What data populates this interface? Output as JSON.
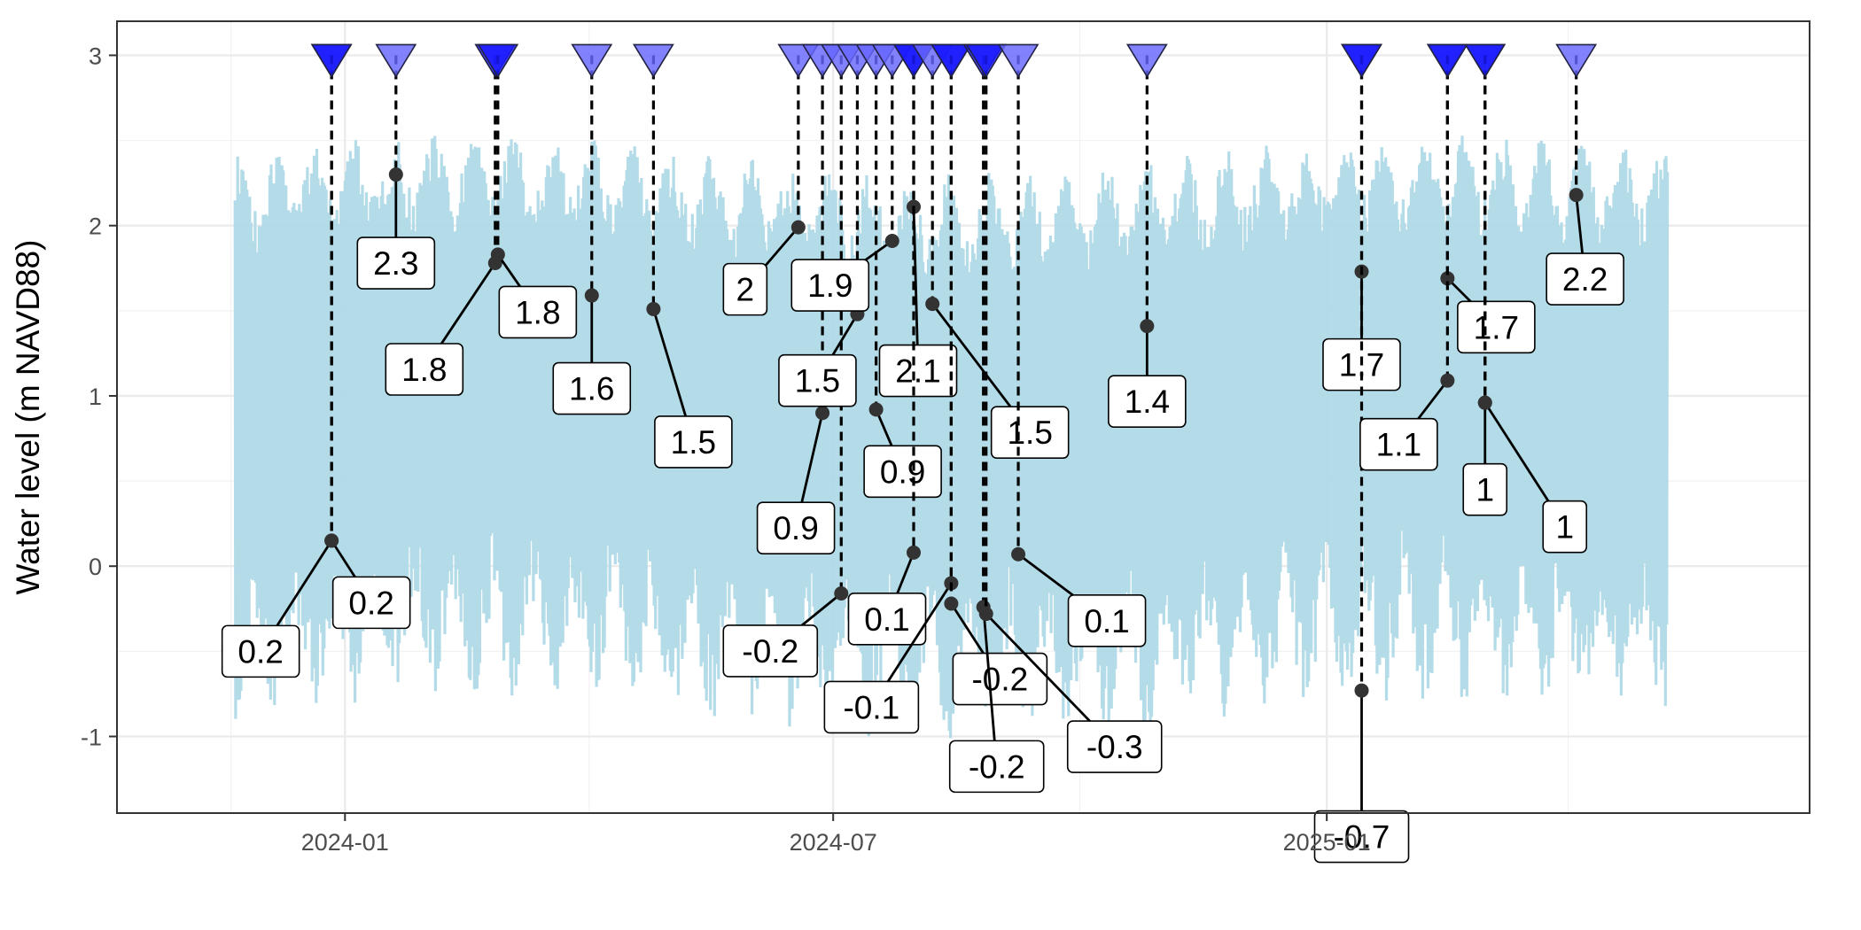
{
  "chart_data": {
    "type": "line",
    "title": "",
    "xlabel": "",
    "ylabel": "Water level (m NAVD88)",
    "xlim": [
      "2023-10-08",
      "2025-06-30"
    ],
    "ylim": [
      -1.45,
      3.2
    ],
    "x_ticks": [
      "2024-01-01",
      "2024-07-01",
      "2025-01-01"
    ],
    "x_tick_labels": [
      "2024-01",
      "2024-07",
      "2025-01"
    ],
    "y_ticks": [
      -1,
      0,
      1,
      2,
      3
    ],
    "y_tick_labels": [
      "-1",
      "0",
      "1",
      "2",
      "3"
    ],
    "grid": true,
    "legend": "none",
    "water_level_series": {
      "color": "#add8e6",
      "start": "2023-11-21",
      "end": "2025-05-08",
      "envelope_note": "semi-diurnal tide, high ~2.0-2.7 m, low ~-0.3 to -1.2 m"
    },
    "event_marker_level": 3.0,
    "marker_colors": {
      "dark": "#1a1aff",
      "light": "#6666ff"
    },
    "events": [
      {
        "date": "2023-12-27",
        "level": 0.15,
        "label": "0.2",
        "shade": "dark"
      },
      {
        "date": "2023-12-27",
        "level": 0.15,
        "label": "0.2",
        "shade": "dark"
      },
      {
        "date": "2024-01-20",
        "level": 2.3,
        "label": "2.3",
        "shade": "light"
      },
      {
        "date": "2024-02-26",
        "level": 1.78,
        "label": "1.8",
        "shade": "dark"
      },
      {
        "date": "2024-02-27",
        "level": 1.83,
        "label": "1.8",
        "shade": "dark"
      },
      {
        "date": "2024-04-02",
        "level": 1.59,
        "label": "1.6",
        "shade": "light"
      },
      {
        "date": "2024-04-25",
        "level": 1.51,
        "label": "1.5",
        "shade": "light"
      },
      {
        "date": "2024-06-18",
        "level": 1.99,
        "label": "2",
        "shade": "light"
      },
      {
        "date": "2024-06-27",
        "level": 0.9,
        "label": "0.9",
        "shade": "light"
      },
      {
        "date": "2024-07-04",
        "level": -0.16,
        "label": "-0.2",
        "shade": "light"
      },
      {
        "date": "2024-07-10",
        "level": 1.48,
        "label": "1.5",
        "shade": "light"
      },
      {
        "date": "2024-07-17",
        "level": 0.92,
        "label": "0.9",
        "shade": "light"
      },
      {
        "date": "2024-07-23",
        "level": 1.91,
        "label": "1.9",
        "shade": "light"
      },
      {
        "date": "2024-07-31",
        "level": 2.11,
        "label": "2.1",
        "shade": "dark"
      },
      {
        "date": "2024-07-31",
        "level": 0.08,
        "label": "0.1",
        "shade": "dark"
      },
      {
        "date": "2024-08-07",
        "level": 1.54,
        "label": "1.5",
        "shade": "light"
      },
      {
        "date": "2024-08-14",
        "level": -0.1,
        "label": "-0.1",
        "shade": "dark"
      },
      {
        "date": "2024-08-14",
        "level": -0.22,
        "label": "-0.2",
        "shade": "dark"
      },
      {
        "date": "2024-08-26",
        "level": -0.24,
        "label": "-0.2",
        "shade": "dark"
      },
      {
        "date": "2024-08-27",
        "level": -0.28,
        "label": "-0.3",
        "shade": "dark"
      },
      {
        "date": "2024-09-08",
        "level": 0.07,
        "label": "0.1",
        "shade": "light"
      },
      {
        "date": "2024-10-26",
        "level": 1.41,
        "label": "1.4",
        "shade": "light"
      },
      {
        "date": "2025-01-14",
        "level": 1.73,
        "label": "1.7",
        "shade": "dark"
      },
      {
        "date": "2025-01-14",
        "level": -0.73,
        "label": "-0.7",
        "shade": "dark"
      },
      {
        "date": "2025-02-15",
        "level": 1.69,
        "label": "1.7",
        "shade": "dark"
      },
      {
        "date": "2025-02-15",
        "level": 1.09,
        "label": "1.1",
        "shade": "dark"
      },
      {
        "date": "2025-03-01",
        "level": 0.96,
        "label": "1",
        "shade": "dark"
      },
      {
        "date": "2025-03-01",
        "level": 0.96,
        "label": "1",
        "shade": "dark"
      },
      {
        "date": "2025-04-04",
        "level": 2.18,
        "label": "2.2",
        "shade": "light"
      }
    ]
  }
}
